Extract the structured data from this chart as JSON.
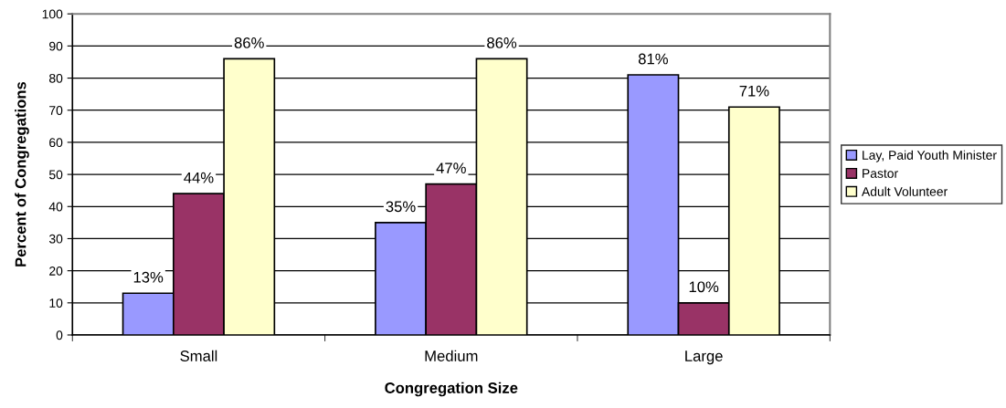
{
  "chart_data": {
    "type": "bar",
    "xlabel": "Congregation Size",
    "ylabel": "Percent of Congregations",
    "categories": [
      "Small",
      "Medium",
      "Large"
    ],
    "series": [
      {
        "name": "Lay, Paid Youth Minister",
        "color": "#9999ff",
        "values": [
          13,
          35,
          81
        ],
        "value_labels": [
          "13%",
          "35%",
          "81%"
        ]
      },
      {
        "name": "Pastor",
        "color": "#993366",
        "values": [
          44,
          47,
          10
        ],
        "value_labels": [
          "44%",
          "47%",
          "10%"
        ]
      },
      {
        "name": "Adult Volunteer",
        "color": "#ffffcc",
        "values": [
          86,
          86,
          71
        ],
        "value_labels": [
          "86%",
          "86%",
          "71%"
        ]
      }
    ],
    "ylim": [
      0,
      100
    ],
    "yticks": [
      0,
      10,
      20,
      30,
      40,
      50,
      60,
      70,
      80,
      90,
      100
    ],
    "grid": "y",
    "legend": "right"
  }
}
